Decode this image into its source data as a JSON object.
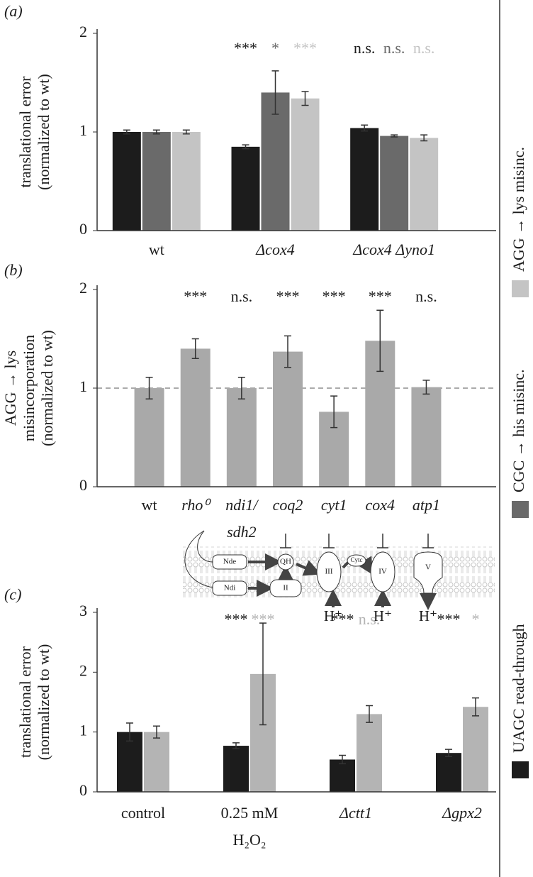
{
  "chart_data": [
    {
      "type": "bar",
      "panel_label": "(a)",
      "ylabel": [
        "translational error",
        "(normalized to wt)"
      ],
      "categories": [
        [
          "wt"
        ],
        [
          "Δcox4"
        ],
        [
          "Δcox4 Δyno1"
        ]
      ],
      "ylim": [
        0,
        2
      ],
      "yticks": [
        0,
        1,
        2
      ],
      "legend": "right",
      "series": [
        {
          "name": "UAGC read-through",
          "color": "#1c1c1c",
          "values": [
            1.0,
            0.85,
            1.04
          ],
          "errors": [
            0.02,
            0.02,
            0.03
          ],
          "significance": [
            null,
            "***",
            "n.s."
          ]
        },
        {
          "name": "CGC → his misinc.",
          "color": "#6a6a6a",
          "values": [
            1.0,
            1.4,
            0.96
          ],
          "errors": [
            0.02,
            0.22,
            0.01
          ],
          "significance": [
            null,
            "*",
            "n.s."
          ]
        },
        {
          "name": "AGG → lys misinc.",
          "color": "#c4c4c4",
          "values": [
            1.0,
            1.34,
            0.94
          ],
          "errors": [
            0.02,
            0.07,
            0.03
          ],
          "significance": [
            null,
            "***",
            "n.s."
          ]
        }
      ]
    },
    {
      "type": "bar",
      "panel_label": "(b)",
      "ylabel": [
        "AGG → lys",
        "misincorporation",
        "(normalized to wt)"
      ],
      "categories": [
        [
          "wt"
        ],
        [
          "rho⁰"
        ],
        [
          "ndi1/",
          "sdh2"
        ],
        [
          "coq2"
        ],
        [
          "cyt1"
        ],
        [
          "cox4"
        ],
        [
          "atp1"
        ]
      ],
      "ylim": [
        0,
        2
      ],
      "yticks": [
        0,
        1,
        2
      ],
      "reference_line": 1,
      "series": [
        {
          "color": "#a9a9a9",
          "values": [
            1.0,
            1.4,
            1.0,
            1.37,
            0.76,
            1.48,
            1.01
          ],
          "errors": [
            0.11,
            0.1,
            0.11,
            0.16,
            0.16,
            0.31,
            0.07
          ],
          "significance": [
            null,
            "***",
            "n.s.",
            "***",
            "***",
            "***",
            "n.s."
          ],
          "significance_color": "#1c1c1c"
        }
      ]
    },
    {
      "type": "bar",
      "panel_label": "(c)",
      "ylabel": [
        "translational error",
        "(normalized to wt)"
      ],
      "categories": [
        [
          "control"
        ],
        [
          "0.25 mM",
          "H₂O₂"
        ],
        [
          "Δctt1"
        ],
        [
          "Δgpx2"
        ]
      ],
      "ylim": [
        0,
        3
      ],
      "yticks": [
        0,
        1,
        2,
        3
      ],
      "series": [
        {
          "color": "#1c1c1c",
          "values": [
            1.0,
            0.77,
            0.54,
            0.65
          ],
          "errors": [
            0.15,
            0.05,
            0.07,
            0.06
          ],
          "significance": [
            null,
            "***",
            "***",
            "***"
          ]
        },
        {
          "color": "#b4b4b4",
          "values": [
            1.0,
            1.97,
            1.3,
            1.42
          ],
          "errors": [
            0.1,
            0.85,
            0.14,
            0.15
          ],
          "significance": [
            null,
            "***",
            "n.s.",
            "*"
          ]
        }
      ]
    }
  ],
  "diagram": {
    "nde": "Nde",
    "ndi": "Ndi",
    "qh": "QH",
    "complex2": "II",
    "complex3": "III",
    "cytc": "Cytc",
    "complex4": "IV",
    "complex5": "V",
    "protons": [
      "H⁺",
      "H⁺",
      "H⁺"
    ]
  }
}
